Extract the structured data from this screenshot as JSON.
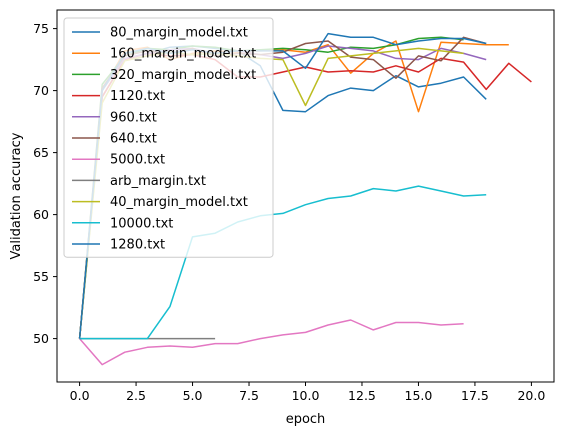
{
  "chart_data": {
    "type": "line",
    "title": "",
    "xlabel": "epoch",
    "ylabel": "Validation accuracy",
    "xlim": [
      -1.0,
      21.0
    ],
    "ylim": [
      46.5,
      76.5
    ],
    "xticks": [
      0,
      2.5,
      5,
      7.5,
      10,
      12.5,
      15,
      17.5,
      20
    ],
    "xtick_labels": [
      "0.0",
      "2.5",
      "5.0",
      "7.5",
      "10.0",
      "12.5",
      "15.0",
      "17.5",
      "20.0"
    ],
    "yticks": [
      50,
      55,
      60,
      65,
      70,
      75
    ],
    "ytick_labels": [
      "50",
      "55",
      "60",
      "65",
      "70",
      "75"
    ],
    "grid": false,
    "legend_position": "top-left",
    "series": [
      {
        "name": "80_margin_model.txt",
        "color": "#1f77b4",
        "x": [
          0,
          1,
          2,
          3,
          4,
          5,
          6,
          7,
          8,
          9,
          10,
          11,
          12,
          13,
          14,
          15,
          16,
          17,
          18
        ],
        "y": [
          50,
          69.5,
          72.5,
          73.0,
          73.5,
          73.6,
          73.4,
          73.2,
          72.0,
          68.4,
          68.3,
          69.6,
          70.2,
          70.0,
          71.2,
          70.3,
          70.6,
          71.1,
          69.3
        ]
      },
      {
        "name": "160_margin_model.txt",
        "color": "#ff7f0e",
        "x": [
          0,
          1,
          2,
          3,
          4,
          5,
          6,
          7,
          8,
          9,
          10,
          11,
          12,
          13,
          14,
          15,
          16,
          17,
          18,
          19
        ],
        "y": [
          50,
          70.0,
          73.2,
          73.5,
          72.5,
          73.0,
          73.2,
          73.1,
          73.2,
          73.3,
          73.1,
          73.7,
          71.4,
          73.0,
          74.0,
          68.3,
          73.9,
          73.8,
          73.7,
          73.7
        ]
      },
      {
        "name": "320_margin_model.txt",
        "color": "#2ca02c",
        "x": [
          0,
          1,
          2,
          3,
          4,
          5,
          6,
          7,
          8,
          9,
          10,
          11,
          12,
          13,
          14,
          15,
          16,
          17
        ],
        "y": [
          50,
          70.5,
          72.8,
          73.4,
          73.3,
          73.6,
          73.5,
          73.2,
          73.3,
          73.4,
          73.3,
          73.1,
          73.5,
          73.4,
          73.7,
          74.2,
          74.3,
          74.1
        ]
      },
      {
        "name": "1120.txt",
        "color": "#d62728",
        "x": [
          0,
          1,
          2,
          3,
          4,
          5,
          6,
          7,
          8,
          9,
          10,
          11,
          12,
          13,
          14,
          15,
          16,
          17,
          18,
          19,
          20
        ],
        "y": [
          50,
          69.5,
          72.5,
          73.0,
          72.8,
          72.9,
          72.5,
          71.1,
          71.1,
          71.5,
          71.9,
          71.5,
          71.6,
          71.5,
          72.0,
          71.5,
          72.6,
          72.3,
          70.1,
          72.2,
          70.7
        ]
      },
      {
        "name": "960.txt",
        "color": "#9467bd",
        "x": [
          0,
          1,
          2,
          3,
          4,
          5,
          6,
          7,
          8,
          9,
          10,
          11,
          12,
          13,
          14,
          15,
          16,
          17,
          18
        ],
        "y": [
          50,
          70.0,
          72.6,
          73.0,
          73.3,
          73.4,
          73.0,
          73.2,
          72.9,
          72.6,
          73.0,
          73.6,
          73.4,
          73.2,
          72.6,
          72.5,
          73.4,
          73.0,
          72.5
        ]
      },
      {
        "name": "640.txt",
        "color": "#8c564b",
        "x": [
          0,
          1,
          2,
          3,
          4,
          5,
          6,
          7,
          8,
          9,
          10,
          11,
          12,
          13,
          14,
          15,
          16,
          17,
          18
        ],
        "y": [
          50,
          70.2,
          72.8,
          73.2,
          73.0,
          73.4,
          72.8,
          73.0,
          72.9,
          73.1,
          73.8,
          74.0,
          72.7,
          72.5,
          71.0,
          72.8,
          72.4,
          74.3,
          73.8
        ]
      },
      {
        "name": "5000.txt",
        "color": "#e377c2",
        "x": [
          0,
          1,
          2,
          3,
          4,
          5,
          6,
          7,
          8,
          9,
          10,
          11,
          12,
          13,
          14,
          15,
          16,
          17
        ],
        "y": [
          50,
          47.9,
          48.9,
          49.3,
          49.4,
          49.3,
          49.6,
          49.6,
          50.0,
          50.3,
          50.5,
          51.1,
          51.5,
          50.7,
          51.3,
          51.3,
          51.1,
          51.2
        ]
      },
      {
        "name": "arb_margin.txt",
        "color": "#7f7f7f",
        "x": [
          0,
          1,
          2,
          3,
          4,
          5,
          6
        ],
        "y": [
          50,
          50,
          50,
          50,
          50,
          50,
          50
        ]
      },
      {
        "name": "40_margin_model.txt",
        "color": "#bcbd22",
        "x": [
          0,
          1,
          2,
          3,
          4,
          5,
          6,
          7,
          8,
          9,
          10,
          11,
          12,
          13,
          14,
          15,
          16,
          17
        ],
        "y": [
          50,
          69.0,
          72.4,
          72.8,
          73.1,
          72.9,
          73.0,
          72.8,
          72.6,
          72.5,
          68.8,
          72.6,
          72.8,
          73.0,
          73.2,
          73.4,
          73.2,
          73.0
        ]
      },
      {
        "name": "10000.txt",
        "color": "#17becf",
        "x": [
          0,
          1,
          2,
          3,
          4,
          5,
          6,
          7,
          8,
          9,
          10,
          11,
          12,
          13,
          14,
          15,
          16,
          17,
          18
        ],
        "y": [
          50,
          50,
          50,
          50,
          52.6,
          58.2,
          58.5,
          59.4,
          59.9,
          60.1,
          60.8,
          61.3,
          61.5,
          62.1,
          61.9,
          62.3,
          61.9,
          61.5,
          61.6
        ]
      },
      {
        "name": "1280.txt",
        "color": "#1f77b4",
        "x": [
          0,
          1,
          2,
          3,
          4,
          5,
          6,
          7,
          8,
          9,
          10,
          11,
          12,
          13,
          14,
          15,
          16,
          17,
          18
        ],
        "y": [
          50,
          70.0,
          73.0,
          73.4,
          73.0,
          73.3,
          73.0,
          73.2,
          73.2,
          73.2,
          71.8,
          74.6,
          74.3,
          74.3,
          73.7,
          74.0,
          74.2,
          74.2,
          73.8
        ]
      }
    ]
  }
}
